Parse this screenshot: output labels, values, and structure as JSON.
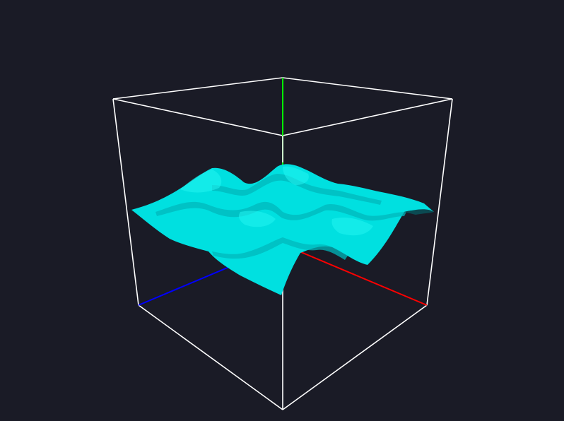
{
  "scene": {
    "background_color": "#1a1b26",
    "bounding_box_color": "#ffffff",
    "surface_color": "#00e5e5",
    "surface_shadow_color": "#00a9ad",
    "axes": [
      {
        "name": "x-axis",
        "color": "#ff0000"
      },
      {
        "name": "y-axis",
        "color": "#00ff00"
      },
      {
        "name": "z-axis",
        "color": "#0000ff"
      }
    ]
  }
}
